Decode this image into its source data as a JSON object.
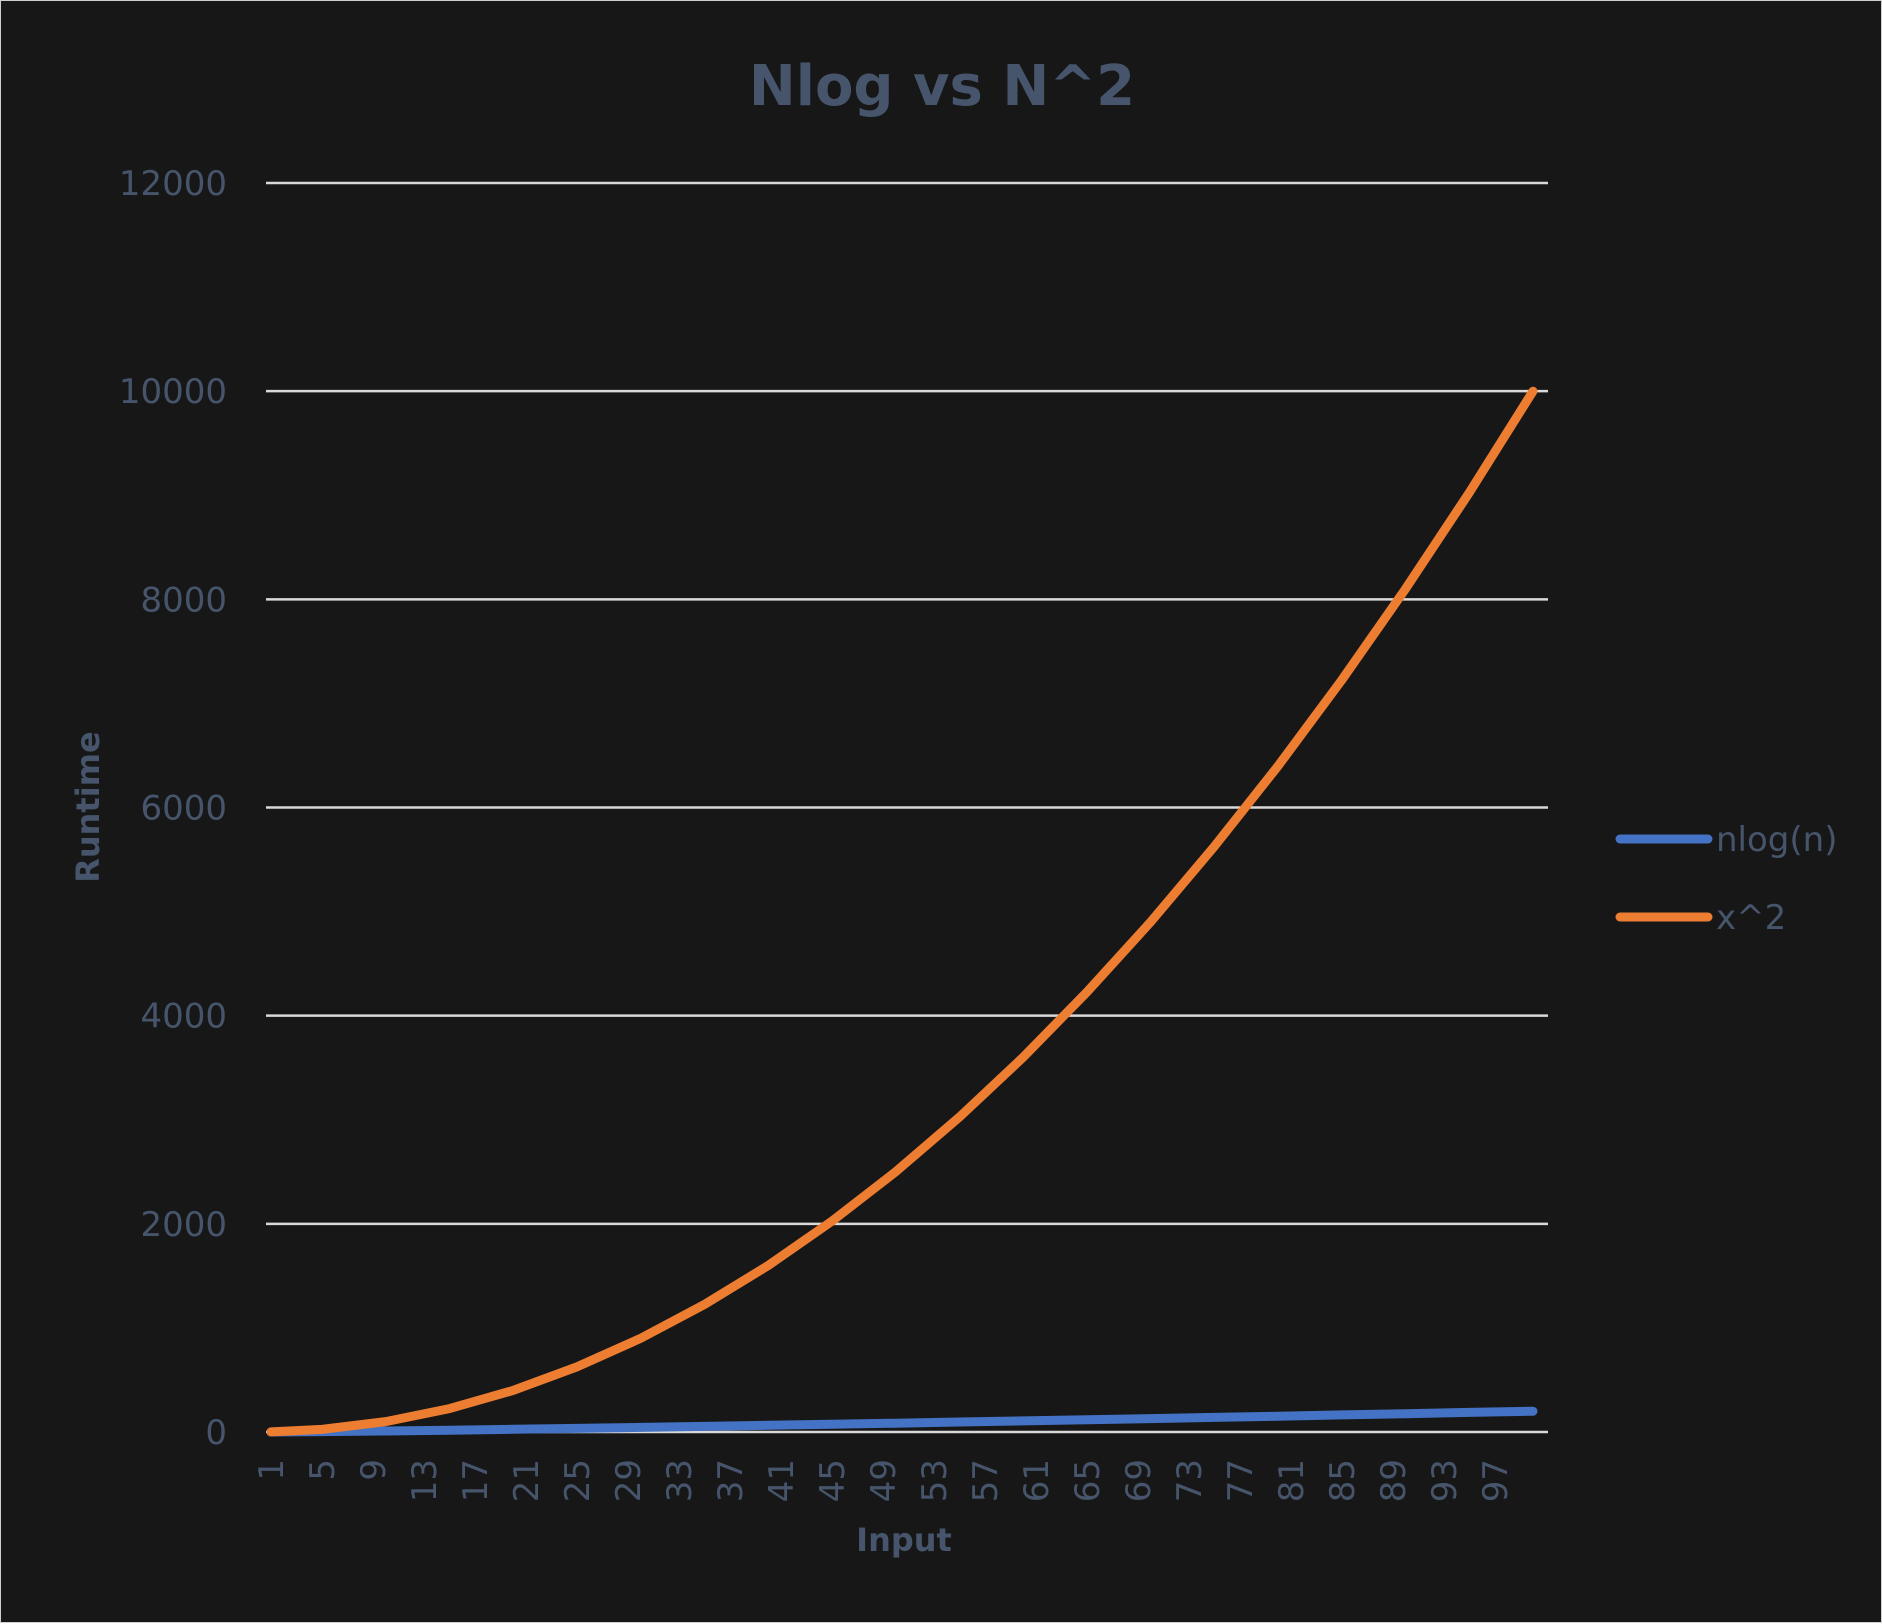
{
  "chart_data": {
    "type": "line",
    "title": "Nlog vs N^2",
    "xlabel": "Input",
    "ylabel": "Runtime",
    "ylim": [
      0,
      12000
    ],
    "yticks": [
      "0",
      "2000",
      "4000",
      "6000",
      "8000",
      "10000",
      "12000"
    ],
    "x_tick_labels": [
      "1",
      "5",
      "9",
      "13",
      "17",
      "21",
      "25",
      "29",
      "33",
      "37",
      "41",
      "45",
      "49",
      "53",
      "57",
      "61",
      "65",
      "69",
      "73",
      "77",
      "81",
      "85",
      "89",
      "93",
      "97"
    ],
    "x_range": [
      1,
      100
    ],
    "grid": true,
    "legend_position": "right",
    "series": [
      {
        "name": "nlog(n)",
        "color": "#4472c4",
        "x": [
          1,
          5,
          10,
          15,
          20,
          25,
          30,
          35,
          40,
          45,
          50,
          55,
          60,
          65,
          70,
          75,
          80,
          85,
          90,
          95,
          100
        ],
        "y": [
          0,
          3.5,
          10,
          17.6,
          26,
          35,
          44.3,
          54,
          64,
          74.4,
          85,
          95.7,
          106.7,
          117.8,
          129.2,
          140.6,
          152.2,
          164,
          175.9,
          187.9,
          200
        ]
      },
      {
        "name": "x^2",
        "color": "#ed7d31",
        "x": [
          1,
          5,
          10,
          15,
          20,
          25,
          30,
          35,
          40,
          45,
          50,
          55,
          60,
          65,
          70,
          75,
          80,
          85,
          90,
          95,
          100
        ],
        "y": [
          1,
          25,
          100,
          225,
          400,
          625,
          900,
          1225,
          1600,
          2025,
          2500,
          3025,
          3600,
          4225,
          4900,
          5625,
          6400,
          7225,
          8100,
          9025,
          10000
        ]
      }
    ]
  }
}
